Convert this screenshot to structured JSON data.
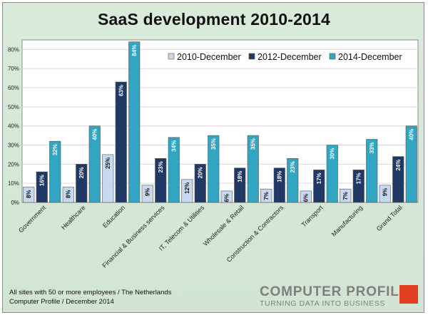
{
  "chart_data": {
    "type": "bar",
    "title": "SaaS development 2010-2014",
    "ylim": [
      0,
      85
    ],
    "y_ticks": [
      0,
      10,
      20,
      30,
      40,
      50,
      60,
      70,
      80
    ],
    "y_tick_labels": [
      "0%",
      "10%",
      "20%",
      "30%",
      "40%",
      "50%",
      "60%",
      "70%",
      "80%"
    ],
    "grid": true,
    "legend_position": "top-right",
    "categories": [
      "Government",
      "Healthcare",
      "Education",
      "Financial & Business services",
      "IT, Telecom & Utilities",
      "Wholesale & Retail",
      "Construction & Contractors",
      "Transport",
      "Manufacturing",
      "Grand Total"
    ],
    "series": [
      {
        "name": "2010-December",
        "color": "#c6d9f1",
        "values": [
          8,
          8,
          25,
          9,
          12,
          6,
          7,
          6,
          7,
          9
        ],
        "labels": [
          "8%",
          "8%",
          "25%",
          "9%",
          "12%",
          "6%",
          "7%",
          "6%",
          "7%",
          "9%"
        ]
      },
      {
        "name": "2012-December",
        "color": "#1f3864",
        "values": [
          16,
          20,
          63,
          23,
          20,
          18,
          18,
          17,
          17,
          24
        ],
        "labels": [
          "16%",
          "20%",
          "63%",
          "23%",
          "20%",
          "18%",
          "18%",
          "17%",
          "17%",
          "24%"
        ]
      },
      {
        "name": "2014-December",
        "color": "#31a5c2",
        "values": [
          32,
          40,
          84,
          34,
          35,
          35,
          23,
          30,
          33,
          40
        ],
        "labels": [
          "32%",
          "40%",
          "84%",
          "34%",
          "35%",
          "35%",
          "23%",
          "30%",
          "33%",
          "40%"
        ]
      }
    ]
  },
  "footnote": {
    "line1": "All sites with 50 or more employees / The Netherlands",
    "line2": "Computer Profile / December 2014"
  },
  "logo": {
    "name": "COMPUTER PROFILE",
    "tagline": "TURNING DATA INTO BUSINESS",
    "accent": "#e0401f"
  }
}
